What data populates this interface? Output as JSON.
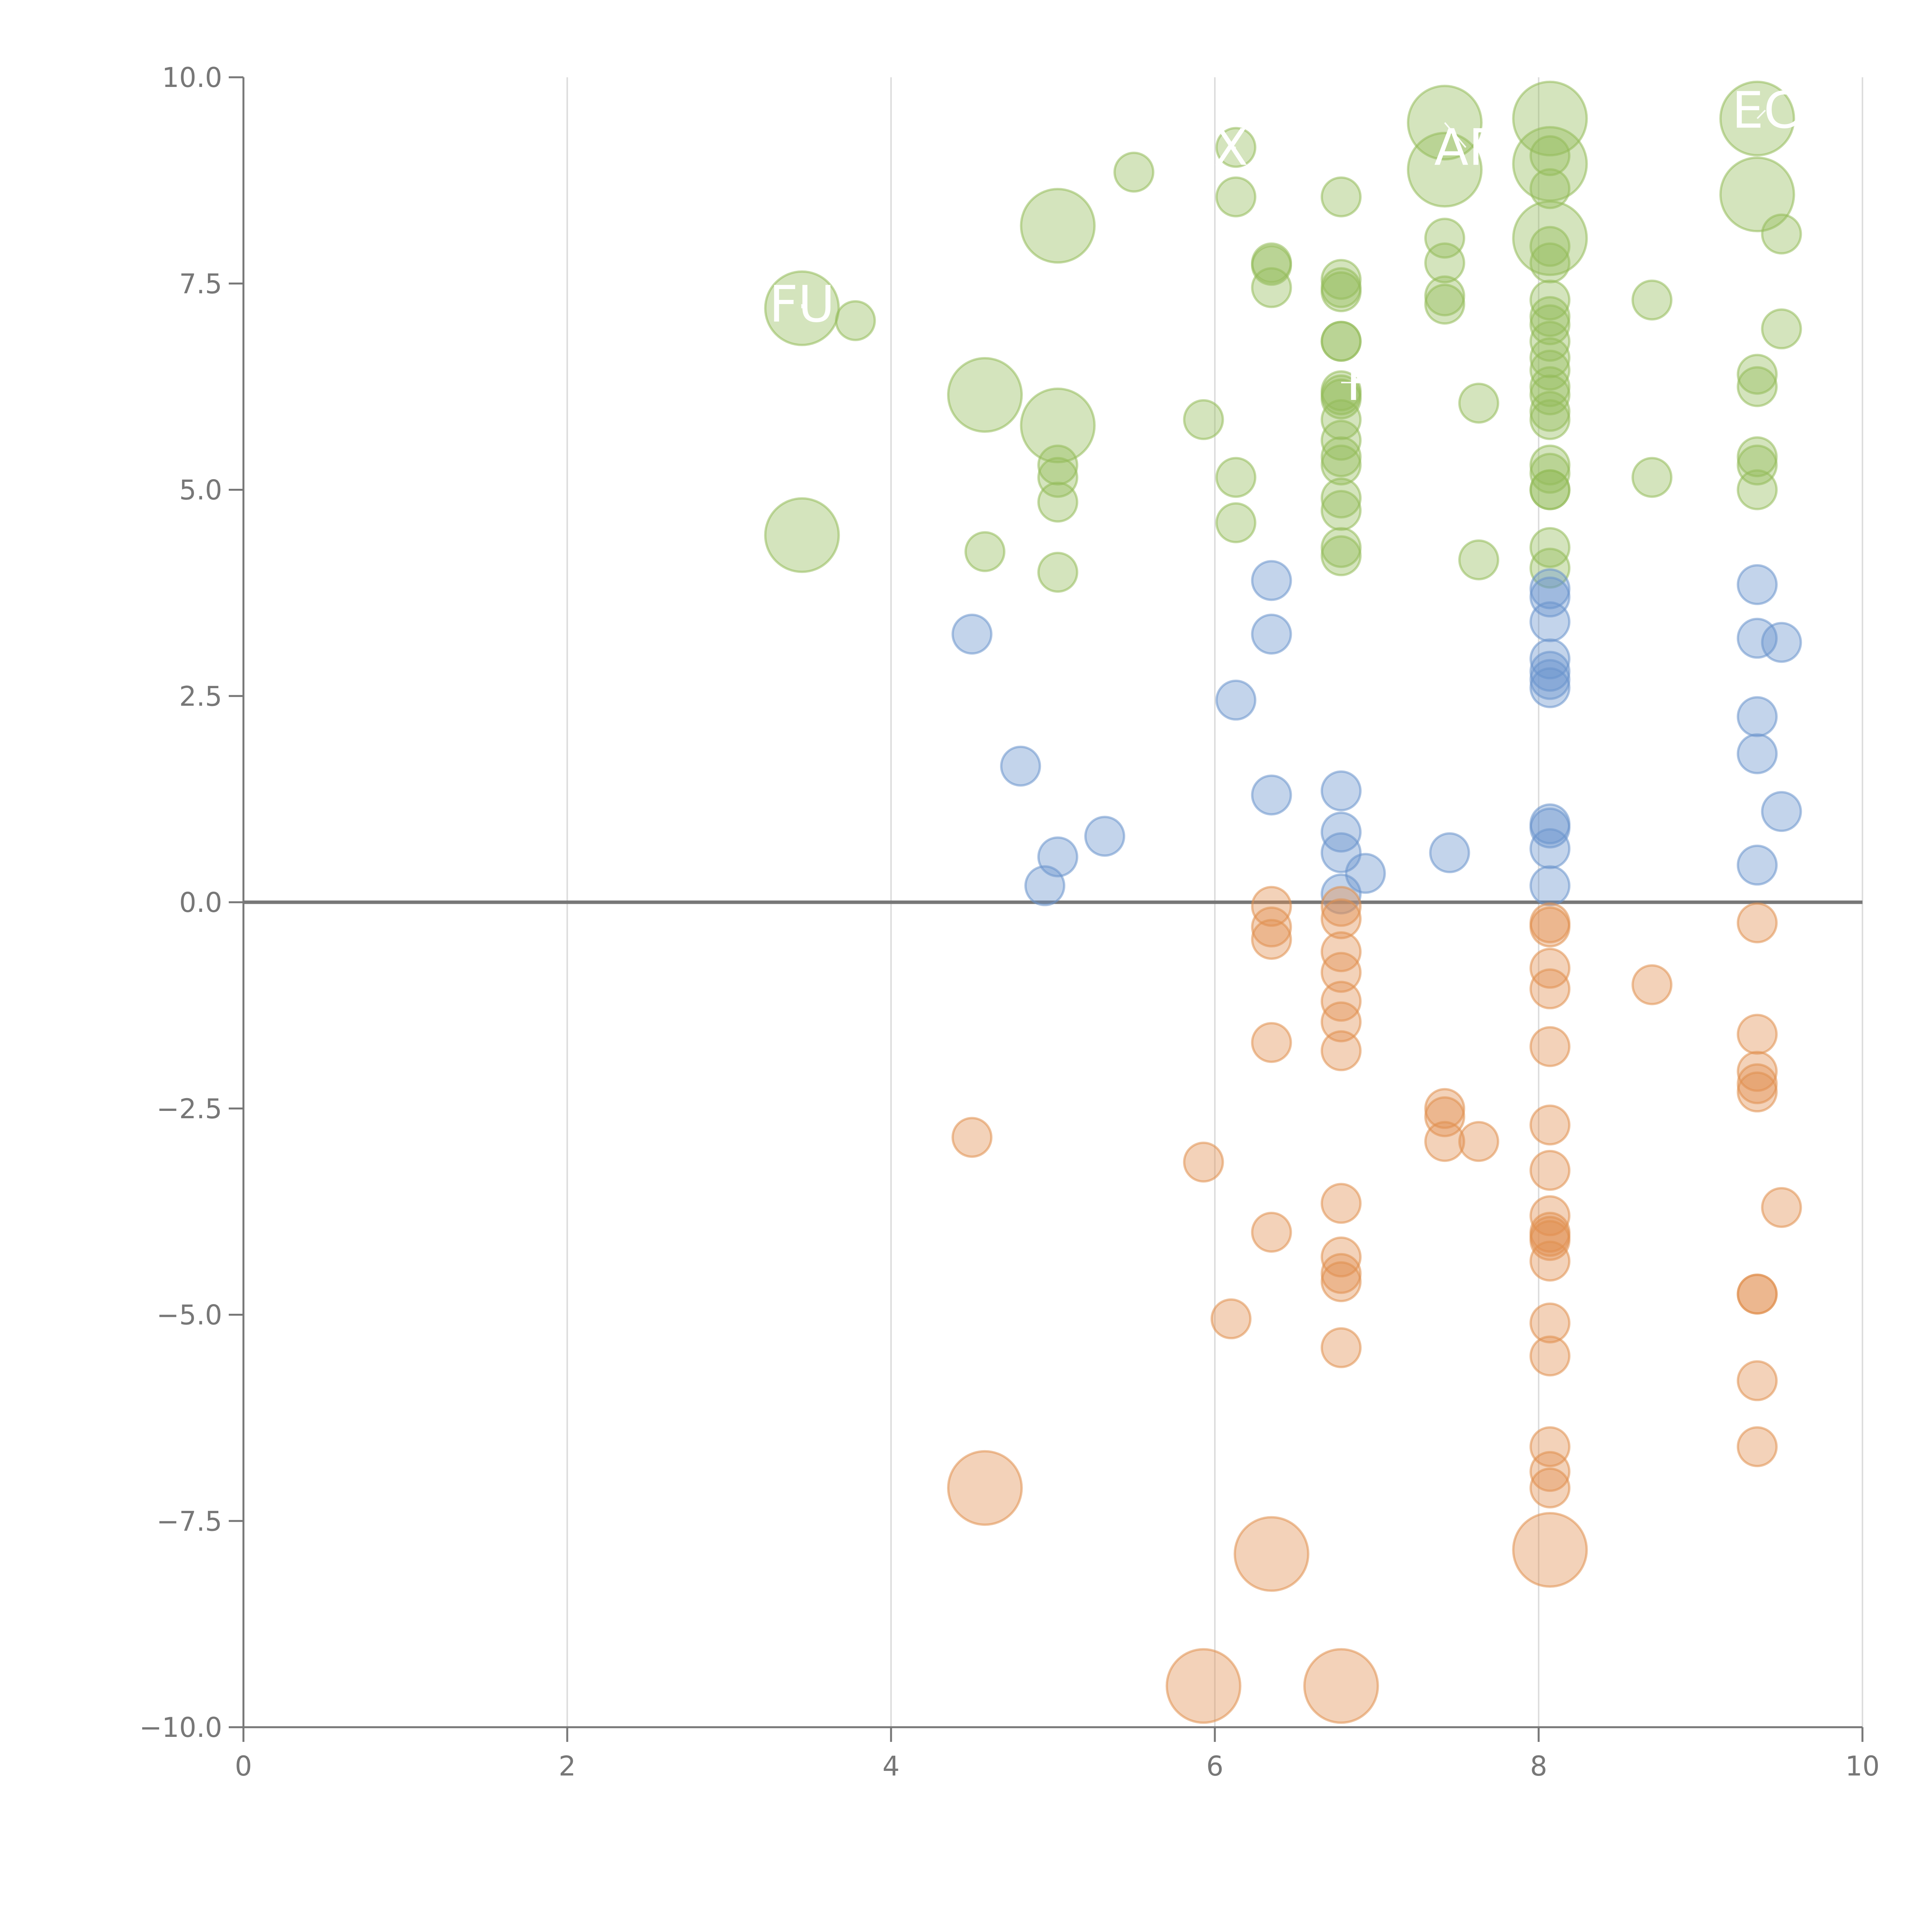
{
  "chart_data": {
    "type": "scatter",
    "subtype": "bubble",
    "title": "",
    "xlabel": "",
    "ylabel": "",
    "xlim": [
      0,
      10
    ],
    "ylim": [
      -10,
      10
    ],
    "xticks": [
      "0",
      "2",
      "4",
      "6",
      "8",
      "10"
    ],
    "yticks": [
      "−10.0",
      "−7.5",
      "−5.0",
      "−2.5",
      "0.0",
      "2.5",
      "5.0",
      "7.5",
      "10.0"
    ],
    "grid": "vertical",
    "zero_line": true,
    "colors": {
      "positive_high": "#93bb5a",
      "positive_low": "#6a93cc",
      "negative": "#e08f4f",
      "axis": "#777777",
      "grid": "#dddddd",
      "zero_line": "#777777",
      "label": "#ffffff"
    },
    "series": [
      {
        "name": "green",
        "color": "#93bb5a",
        "points": [
          [
            3.45,
            7.2,
            3
          ],
          [
            3.45,
            4.45,
            3
          ],
          [
            3.78,
            7.05,
            1
          ],
          [
            4.58,
            6.15,
            3
          ],
          [
            4.58,
            4.25,
            1
          ],
          [
            5.03,
            8.2,
            3
          ],
          [
            5.03,
            5.78,
            3
          ],
          [
            5.03,
            5.3,
            1
          ],
          [
            5.03,
            5.15,
            1
          ],
          [
            5.03,
            4.85,
            1
          ],
          [
            5.03,
            4.0,
            1
          ],
          [
            5.5,
            8.85,
            1
          ],
          [
            5.93,
            5.85,
            1
          ],
          [
            6.13,
            9.15,
            1
          ],
          [
            6.13,
            8.55,
            1
          ],
          [
            6.13,
            5.15,
            1
          ],
          [
            6.13,
            4.6,
            1
          ],
          [
            6.35,
            7.75,
            1
          ],
          [
            6.35,
            7.72,
            1
          ],
          [
            6.35,
            7.45,
            1
          ],
          [
            6.78,
            8.55,
            1
          ],
          [
            6.78,
            7.55,
            1
          ],
          [
            6.78,
            7.4,
            1
          ],
          [
            6.78,
            7.45,
            1
          ],
          [
            6.78,
            6.8,
            1
          ],
          [
            6.78,
            6.8,
            1
          ],
          [
            6.78,
            6.2,
            1
          ],
          [
            6.78,
            6.15,
            1
          ],
          [
            6.78,
            6.1,
            1
          ],
          [
            6.78,
            5.85,
            1
          ],
          [
            6.78,
            5.6,
            1
          ],
          [
            6.78,
            5.4,
            1
          ],
          [
            6.78,
            5.3,
            1
          ],
          [
            6.78,
            4.9,
            1
          ],
          [
            6.78,
            4.75,
            1
          ],
          [
            6.78,
            4.3,
            1
          ],
          [
            6.78,
            4.2,
            1
          ],
          [
            7.42,
            9.45,
            3
          ],
          [
            7.42,
            8.88,
            3
          ],
          [
            7.42,
            8.05,
            1
          ],
          [
            7.42,
            7.75,
            1
          ],
          [
            7.42,
            7.35,
            1
          ],
          [
            7.42,
            7.25,
            1
          ],
          [
            7.63,
            6.05,
            1
          ],
          [
            7.63,
            4.15,
            1
          ],
          [
            8.07,
            9.5,
            3
          ],
          [
            8.07,
            9.05,
            1
          ],
          [
            8.07,
            8.95,
            3
          ],
          [
            8.07,
            8.65,
            1
          ],
          [
            8.07,
            8.05,
            3
          ],
          [
            8.07,
            7.95,
            1
          ],
          [
            8.07,
            7.75,
            1
          ],
          [
            8.07,
            7.3,
            1
          ],
          [
            8.07,
            7.1,
            1
          ],
          [
            8.07,
            7.0,
            1
          ],
          [
            8.07,
            6.8,
            1
          ],
          [
            8.07,
            6.6,
            1
          ],
          [
            8.07,
            6.45,
            1
          ],
          [
            8.07,
            6.25,
            1
          ],
          [
            8.07,
            6.15,
            1
          ],
          [
            8.07,
            5.95,
            1
          ],
          [
            8.07,
            5.85,
            1
          ],
          [
            8.07,
            5.3,
            1
          ],
          [
            8.07,
            5.2,
            1
          ],
          [
            8.07,
            5.0,
            1
          ],
          [
            8.07,
            5.0,
            1
          ],
          [
            8.07,
            4.3,
            1
          ],
          [
            8.07,
            4.05,
            1
          ],
          [
            8.7,
            7.3,
            1
          ],
          [
            8.7,
            5.15,
            1
          ],
          [
            9.35,
            9.5,
            3
          ],
          [
            9.35,
            8.58,
            3
          ],
          [
            9.35,
            6.4,
            1
          ],
          [
            9.35,
            6.25,
            1
          ],
          [
            9.35,
            5.4,
            1
          ],
          [
            9.35,
            5.3,
            1
          ],
          [
            9.35,
            5.0,
            1
          ],
          [
            9.5,
            8.1,
            1
          ],
          [
            9.5,
            6.95,
            1
          ]
        ]
      },
      {
        "name": "blue",
        "color": "#6a93cc",
        "points": [
          [
            4.5,
            3.25,
            1
          ],
          [
            4.8,
            1.65,
            1
          ],
          [
            4.95,
            0.2,
            1
          ],
          [
            5.03,
            0.55,
            1
          ],
          [
            5.32,
            0.8,
            1
          ],
          [
            6.13,
            2.45,
            1
          ],
          [
            6.35,
            3.9,
            1
          ],
          [
            6.35,
            3.25,
            1
          ],
          [
            6.35,
            1.3,
            1
          ],
          [
            6.78,
            1.35,
            1
          ],
          [
            6.78,
            0.85,
            1
          ],
          [
            6.78,
            0.6,
            1
          ],
          [
            6.78,
            0.1,
            1
          ],
          [
            6.93,
            0.35,
            1
          ],
          [
            7.45,
            0.6,
            1
          ],
          [
            8.07,
            3.8,
            1
          ],
          [
            8.07,
            3.7,
            1
          ],
          [
            8.07,
            3.4,
            1
          ],
          [
            8.07,
            2.95,
            1
          ],
          [
            8.07,
            2.8,
            1
          ],
          [
            8.07,
            2.7,
            1
          ],
          [
            8.07,
            2.6,
            1
          ],
          [
            8.07,
            0.95,
            1
          ],
          [
            8.07,
            0.9,
            1
          ],
          [
            8.07,
            0.65,
            1
          ],
          [
            8.07,
            0.2,
            1
          ],
          [
            9.35,
            3.85,
            1
          ],
          [
            9.35,
            3.2,
            1
          ],
          [
            9.35,
            2.25,
            1
          ],
          [
            9.35,
            1.8,
            1
          ],
          [
            9.35,
            0.45,
            1
          ],
          [
            9.5,
            3.15,
            1
          ],
          [
            9.5,
            1.1,
            1
          ]
        ]
      },
      {
        "name": "orange",
        "color": "#e08f4f",
        "points": [
          [
            4.5,
            -2.85,
            1
          ],
          [
            4.58,
            -7.1,
            3
          ],
          [
            5.93,
            -3.15,
            1
          ],
          [
            5.93,
            -9.5,
            3
          ],
          [
            6.1,
            -5.05,
            1
          ],
          [
            6.35,
            -0.05,
            1
          ],
          [
            6.35,
            -0.3,
            1
          ],
          [
            6.35,
            -0.45,
            1
          ],
          [
            6.35,
            -1.7,
            1
          ],
          [
            6.35,
            -4.0,
            1
          ],
          [
            6.35,
            -7.9,
            3
          ],
          [
            6.78,
            -0.05,
            1
          ],
          [
            6.78,
            -0.2,
            1
          ],
          [
            6.78,
            -0.6,
            1
          ],
          [
            6.78,
            -0.85,
            1
          ],
          [
            6.78,
            -1.2,
            1
          ],
          [
            6.78,
            -1.45,
            1
          ],
          [
            6.78,
            -1.8,
            1
          ],
          [
            6.78,
            -3.65,
            1
          ],
          [
            6.78,
            -4.3,
            1
          ],
          [
            6.78,
            -4.5,
            1
          ],
          [
            6.78,
            -4.6,
            1
          ],
          [
            6.78,
            -5.4,
            1
          ],
          [
            6.78,
            -9.5,
            3
          ],
          [
            7.42,
            -2.5,
            1
          ],
          [
            7.42,
            -2.6,
            1
          ],
          [
            7.42,
            -2.9,
            1
          ],
          [
            7.63,
            -2.9,
            1
          ],
          [
            8.07,
            -0.25,
            1
          ],
          [
            8.07,
            -0.3,
            1
          ],
          [
            8.07,
            -0.8,
            1
          ],
          [
            8.07,
            -1.05,
            1
          ],
          [
            8.07,
            -1.75,
            1
          ],
          [
            8.07,
            -2.7,
            1
          ],
          [
            8.07,
            -3.25,
            1
          ],
          [
            8.07,
            -3.8,
            1
          ],
          [
            8.07,
            -4.0,
            1
          ],
          [
            8.07,
            -4.05,
            1
          ],
          [
            8.07,
            -4.1,
            1
          ],
          [
            8.07,
            -4.35,
            1
          ],
          [
            8.07,
            -5.1,
            1
          ],
          [
            8.07,
            -5.5,
            1
          ],
          [
            8.07,
            -6.6,
            1
          ],
          [
            8.07,
            -6.9,
            1
          ],
          [
            8.07,
            -7.1,
            1
          ],
          [
            8.07,
            -7.85,
            3
          ],
          [
            8.7,
            -1.0,
            1
          ],
          [
            9.35,
            -0.25,
            1
          ],
          [
            9.35,
            -1.6,
            1
          ],
          [
            9.35,
            -2.05,
            1
          ],
          [
            9.35,
            -2.2,
            1
          ],
          [
            9.35,
            -2.3,
            1
          ],
          [
            9.35,
            -4.75,
            1
          ],
          [
            9.35,
            -4.75,
            1
          ],
          [
            9.35,
            -5.8,
            1
          ],
          [
            9.35,
            -6.6,
            1
          ],
          [
            9.5,
            -3.7,
            1
          ]
        ]
      }
    ],
    "annotations": [
      {
        "text": "FU",
        "at": [
          3.45,
          7.2
        ],
        "label_at": [
          3.45,
          7.25
        ]
      },
      {
        "text": "EC",
        "at": [
          9.35,
          9.5
        ],
        "label_at": [
          9.4,
          9.6
        ]
      },
      {
        "text": "AF",
        "at": [
          7.42,
          9.45
        ],
        "label_at": [
          7.55,
          9.15
        ]
      },
      {
        "text": "X",
        "at": [
          6.13,
          9.15
        ],
        "label_at": [
          6.1,
          9.15
        ]
      },
      {
        "text": "F",
        "at": [
          6.78,
          6.3
        ],
        "label_at": [
          6.9,
          6.3
        ]
      }
    ]
  }
}
